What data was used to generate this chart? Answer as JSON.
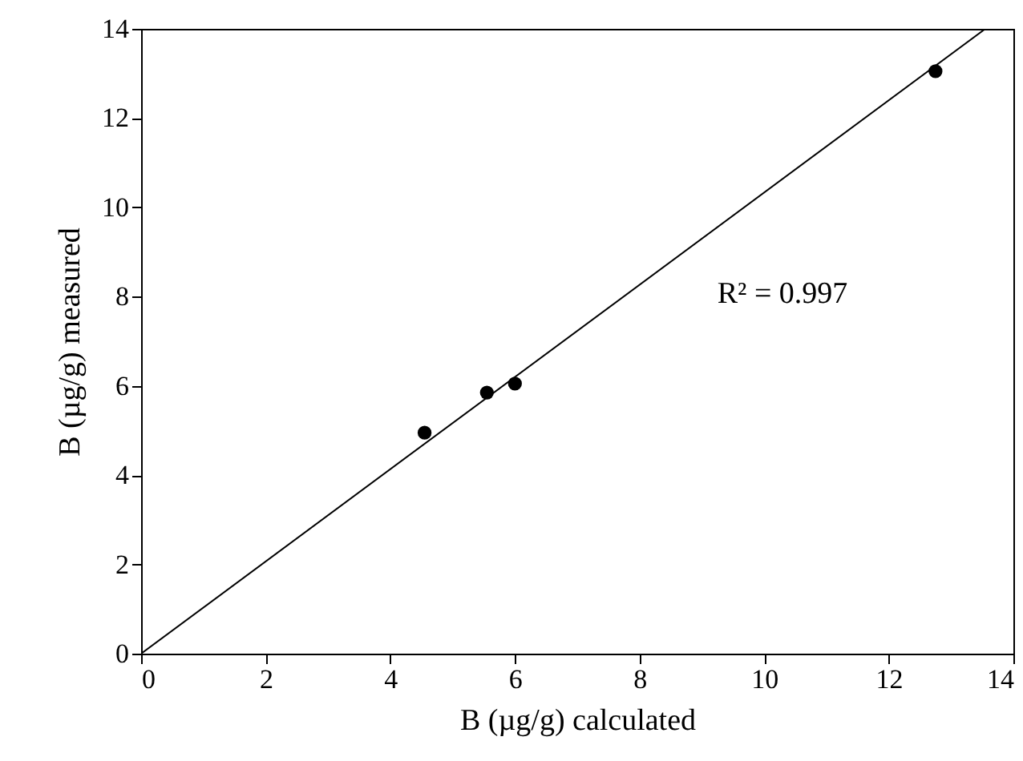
{
  "chart_data": {
    "type": "scatter",
    "xlabel": "B (µg/g) calculated",
    "ylabel": "B (µg/g) measured",
    "x": [
      4.55,
      5.55,
      6.0,
      12.75
    ],
    "series": [
      {
        "color": "#000000",
        "values": [
          4.95,
          5.85,
          6.05,
          13.05
        ],
        "marker": "circle"
      },
      {
        "type": "line",
        "color": "#000000",
        "x": [
          0,
          13.55
        ],
        "values": [
          0,
          14
        ],
        "marker": "none"
      }
    ],
    "xlim": [
      0,
      14
    ],
    "ylim": [
      0,
      14
    ],
    "xticks": [
      0,
      2,
      4,
      6,
      8,
      10,
      12,
      14
    ],
    "yticks": [
      0,
      2,
      4,
      6,
      8,
      10,
      12,
      14
    ],
    "annotations": [
      "R² = 0.997"
    ],
    "grid": false
  }
}
